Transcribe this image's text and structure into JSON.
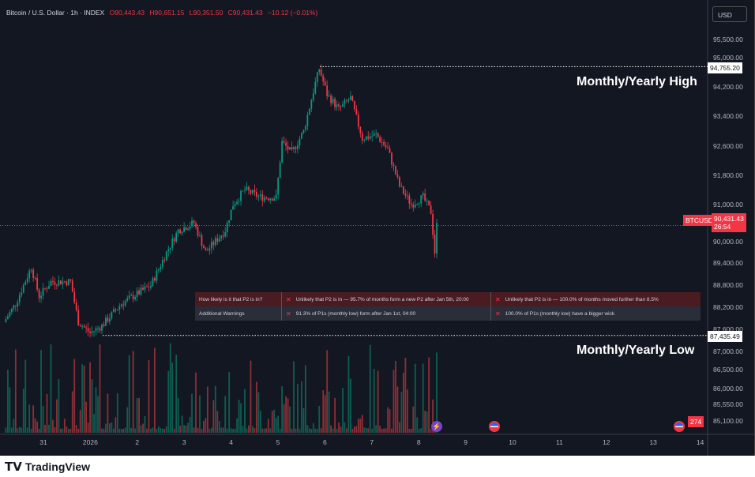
{
  "header": {
    "symbol": "Bitcoin / U.S. Dollar · 1h · INDEX",
    "open": "O90,443.43",
    "high": "H90,651.15",
    "low": "L90,351.50",
    "close": "C90,431.43",
    "change": "−10.12 (−0.01%)"
  },
  "currency": "USD",
  "price_axis": [
    "95,500.00",
    "95,000.00",
    "94,200.00",
    "93,400.00",
    "92,600.00",
    "91,800.00",
    "91,000.00",
    "90,000.00",
    "89,400.00",
    "88,800.00",
    "88,200.00",
    "87,600.00",
    "87,000.00",
    "86,500.00",
    "86,000.00",
    "85,550.00",
    "85,100.00"
  ],
  "price_axis_values": [
    95500,
    95000,
    94200,
    93400,
    92600,
    91800,
    91000,
    90000,
    89400,
    88800,
    88200,
    87600,
    87000,
    86500,
    86000,
    85550,
    85100
  ],
  "time_axis": [
    "31",
    "2026",
    "2",
    "3",
    "4",
    "5",
    "6",
    "7",
    "8",
    "9",
    "10",
    "11",
    "12",
    "13",
    "14"
  ],
  "levels": {
    "high_value": "94,755.20",
    "high_price": 94755.2,
    "high_label": "Monthly/Yearly High",
    "low_value": "87,435.49",
    "low_price": 87435.49,
    "low_label": "Monthly/Yearly Low"
  },
  "current": {
    "symbol": "BTCUSD",
    "price": "90,431.43",
    "price_num": 90431.43,
    "countdown": "26:54"
  },
  "volume_badge": "274",
  "price_path_hours": [
    [
      2,
      87800
    ],
    [
      8,
      88300
    ],
    [
      16,
      89300
    ],
    [
      20,
      88500
    ],
    [
      26,
      88900
    ],
    [
      36,
      88900
    ],
    [
      40,
      87800
    ],
    [
      46,
      87500
    ],
    [
      52,
      87700
    ],
    [
      62,
      88300
    ],
    [
      77,
      88800
    ],
    [
      85,
      89700
    ],
    [
      91,
      90300
    ],
    [
      99,
      90500
    ],
    [
      105,
      89700
    ],
    [
      115,
      90300
    ],
    [
      119,
      91000
    ],
    [
      125,
      91400
    ],
    [
      133,
      91200
    ],
    [
      141,
      91200
    ],
    [
      144,
      92700
    ],
    [
      149,
      92400
    ],
    [
      155,
      93000
    ],
    [
      161,
      94300
    ],
    [
      163,
      94700
    ],
    [
      167,
      94000
    ],
    [
      173,
      93600
    ],
    [
      179,
      93900
    ],
    [
      185,
      92800
    ],
    [
      192,
      92900
    ],
    [
      198,
      92500
    ],
    [
      204,
      91500
    ],
    [
      210,
      91000
    ],
    [
      216,
      91200
    ],
    [
      220,
      90800
    ],
    [
      222,
      89700
    ],
    [
      223,
      90431
    ]
  ],
  "table": {
    "rows": [
      {
        "label": "How likely is it that P2 is in?",
        "cells": [
          "Unlikely that P2 is in — 95.7% of months form a new P2 after Jan 5th, 20:00",
          "Unlikely that P2 is in — 100.0% of months moved further than 8.5%"
        ]
      },
      {
        "label": "Additional Warnings",
        "cells": [
          "91.3% of P1s (monthly low) form after Jan 1st, 04:00",
          "100.0% of P1s (monthly low) have a bigger wick"
        ]
      }
    ],
    "mark": "✕"
  },
  "colors": {
    "up": "#089981",
    "down": "#f23645",
    "bg": "#131722"
  },
  "brand": "TradingView"
}
